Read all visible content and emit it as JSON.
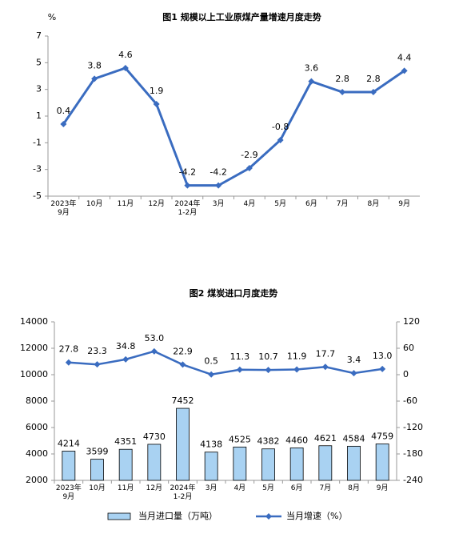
{
  "chart_data": [
    {
      "type": "line",
      "title": "图1  规模以上工业原煤产量增速月度走势",
      "y_label": "%",
      "categories": [
        "2023年\n9月",
        "10月",
        "11月",
        "12月",
        "2024年\n1-2月",
        "3月",
        "4月",
        "5月",
        "6月",
        "7月",
        "8月",
        "9月"
      ],
      "series": [
        {
          "color": "#3a6cc0",
          "values": [
            0.4,
            3.8,
            4.6,
            1.9,
            -4.2,
            -4.2,
            -2.9,
            -0.8,
            3.6,
            2.8,
            2.8,
            4.4
          ]
        }
      ],
      "ylim": [
        -5,
        7
      ],
      "yticks": [
        -5,
        -3,
        -1,
        1,
        3,
        5,
        7
      ]
    },
    {
      "type": "bar",
      "title": "图2  煤炭进口月度走势",
      "categories": [
        "2023年\n9月",
        "10月",
        "11月",
        "12月",
        "2024年\n1-2月",
        "3月",
        "4月",
        "5月",
        "6月",
        "7月",
        "8月",
        "9月"
      ],
      "series": [
        {
          "name": "当月进口量（万吨）",
          "type": "bar",
          "color": "#a9d2f2",
          "values": [
            4214,
            3599,
            4351,
            4730,
            7452,
            4138,
            4525,
            4382,
            4460,
            4621,
            4584,
            4759
          ]
        },
        {
          "name": "当月增速（%）",
          "type": "line",
          "axis": "y2",
          "color": "#3a6cc0",
          "values": [
            27.8,
            23.3,
            34.8,
            53.0,
            22.9,
            0.5,
            11.3,
            10.7,
            11.9,
            17.7,
            3.4,
            13.0
          ],
          "value_labels": [
            "27.8",
            "23.3",
            "34.8",
            "53.0",
            "22.9",
            "0.5",
            "11.3",
            "10.7",
            "11.9",
            "17.7",
            "3.4",
            "13.0"
          ]
        }
      ],
      "ylim": [
        2000,
        14000
      ],
      "yticks": [
        2000,
        4000,
        6000,
        8000,
        10000,
        12000,
        14000
      ],
      "y2lim": [
        -240,
        120
      ],
      "y2ticks": [
        -240,
        -180,
        -120,
        -60,
        0,
        60,
        120
      ]
    }
  ]
}
